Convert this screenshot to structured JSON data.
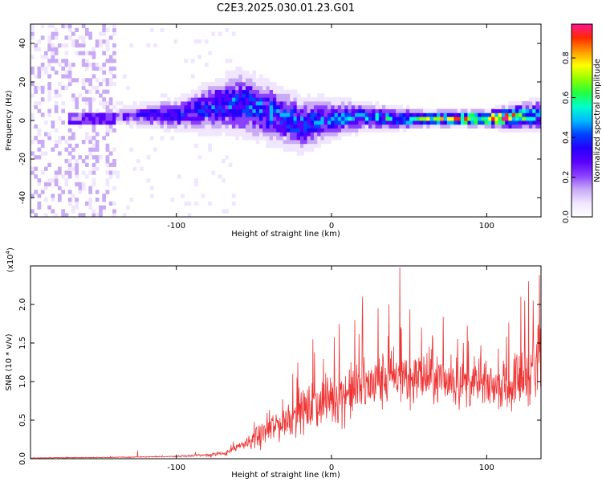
{
  "title": "C2E3.2025.030.01.23.G01",
  "chart_data": [
    {
      "type": "heatmap",
      "name": "spectrogram",
      "xlabel": "Height of straight line (km)",
      "ylabel": "Frequency (Hz)",
      "xlim": [
        -194,
        135
      ],
      "ylim": [
        -50,
        50
      ],
      "xticks": [
        -100,
        0,
        100
      ],
      "yticks": [
        -40,
        -20,
        0,
        20,
        40
      ],
      "colorbar": {
        "label": "Normalized spectral amplitude",
        "range": [
          0,
          0.97
        ],
        "ticks": [
          0.0,
          0.2,
          0.4,
          0.6,
          0.8
        ],
        "colors": [
          "#ffffff",
          "#f0e6ff",
          "#c8aaf5",
          "#8a40ff",
          "#5a00ff",
          "#2400ff",
          "#0044ff",
          "#00bbff",
          "#00ffcc",
          "#20ff40",
          "#90ff00",
          "#ffff00",
          "#ff9a00",
          "#ff2a00",
          "#ff1493"
        ]
      },
      "ridge": [
        {
          "x": -165,
          "f": 0
        },
        {
          "x": -140,
          "f": 1
        },
        {
          "x": -120,
          "f": 2
        },
        {
          "x": -100,
          "f": 2
        },
        {
          "x": -80,
          "f": 6
        },
        {
          "x": -60,
          "f": 8
        },
        {
          "x": -40,
          "f": 3
        },
        {
          "x": -20,
          "f": -3
        },
        {
          "x": 0,
          "f": 0
        },
        {
          "x": 20,
          "f": 1
        },
        {
          "x": 40,
          "f": 0
        },
        {
          "x": 60,
          "f": 0
        },
        {
          "x": 80,
          "f": 0
        },
        {
          "x": 100,
          "f": 0
        },
        {
          "x": 120,
          "f": 1
        },
        {
          "x": 135,
          "f": 2
        }
      ],
      "spread": [
        {
          "x": -140,
          "w": 3
        },
        {
          "x": -100,
          "w": 6
        },
        {
          "x": -60,
          "w": 12
        },
        {
          "x": -20,
          "w": 10
        },
        {
          "x": 20,
          "w": 5
        },
        {
          "x": 60,
          "w": 3
        },
        {
          "x": 100,
          "w": 3
        },
        {
          "x": 135,
          "w": 6
        }
      ],
      "peak_amplitude": [
        {
          "x": -140,
          "a": 0.3
        },
        {
          "x": -60,
          "a": 0.45
        },
        {
          "x": 0,
          "a": 0.45
        },
        {
          "x": 40,
          "a": 0.55
        },
        {
          "x": 80,
          "a": 0.8
        },
        {
          "x": 110,
          "a": 0.95
        },
        {
          "x": 135,
          "a": 0.45
        }
      ],
      "noise_region_x": [
        -194,
        -140
      ]
    },
    {
      "type": "line",
      "name": "snr",
      "xlabel": "Height of straight line (km)",
      "ylabel": "SNR (10 * v/v)",
      "yscale_label": "(x10",
      "yscale_exponent": "4",
      "xlim": [
        -194,
        135
      ],
      "ylim": [
        0,
        2.5
      ],
      "xticks": [
        -100,
        0,
        100
      ],
      "yticks": [
        0.0,
        0.5,
        1.0,
        1.5,
        2.0
      ],
      "color": "#ee3333",
      "baseline": [
        {
          "x": -194,
          "y": 0.01
        },
        {
          "x": -130,
          "y": 0.02
        },
        {
          "x": -100,
          "y": 0.03
        },
        {
          "x": -70,
          "y": 0.06
        },
        {
          "x": -50,
          "y": 0.25
        },
        {
          "x": -30,
          "y": 0.5
        },
        {
          "x": -10,
          "y": 0.7
        },
        {
          "x": 10,
          "y": 0.85
        },
        {
          "x": 40,
          "y": 1.05
        },
        {
          "x": 60,
          "y": 1.05
        },
        {
          "x": 80,
          "y": 1.0
        },
        {
          "x": 100,
          "y": 0.95
        },
        {
          "x": 115,
          "y": 0.95
        },
        {
          "x": 125,
          "y": 1.1
        },
        {
          "x": 135,
          "y": 1.2
        }
      ],
      "noise_amplitude": [
        {
          "x": -194,
          "y": 0.005
        },
        {
          "x": -100,
          "y": 0.01
        },
        {
          "x": -60,
          "y": 0.06
        },
        {
          "x": -40,
          "y": 0.3
        },
        {
          "x": 0,
          "y": 0.5
        },
        {
          "x": 40,
          "y": 0.55
        },
        {
          "x": 80,
          "y": 0.45
        },
        {
          "x": 110,
          "y": 0.4
        },
        {
          "x": 135,
          "y": 0.8
        }
      ],
      "spikes": [
        {
          "x": -125,
          "y": 0.1
        },
        {
          "x": -75,
          "y": 0.07
        },
        {
          "x": -45,
          "y": 0.4
        },
        {
          "x": -25,
          "y": 1.1
        },
        {
          "x": -12,
          "y": 1.55
        },
        {
          "x": 5,
          "y": 1.75
        },
        {
          "x": 15,
          "y": 1.8
        },
        {
          "x": 20,
          "y": 2.1
        },
        {
          "x": 30,
          "y": 1.95
        },
        {
          "x": 37,
          "y": 2.0
        },
        {
          "x": 44,
          "y": 2.48
        },
        {
          "x": 58,
          "y": 1.7
        },
        {
          "x": 65,
          "y": 1.6
        },
        {
          "x": 77,
          "y": 1.35
        },
        {
          "x": 85,
          "y": 1.5
        },
        {
          "x": 95,
          "y": 1.3
        },
        {
          "x": 122,
          "y": 2.1
        },
        {
          "x": 127,
          "y": 2.3
        },
        {
          "x": 130,
          "y": 2.05
        },
        {
          "x": 134,
          "y": 2.38
        }
      ]
    }
  ]
}
